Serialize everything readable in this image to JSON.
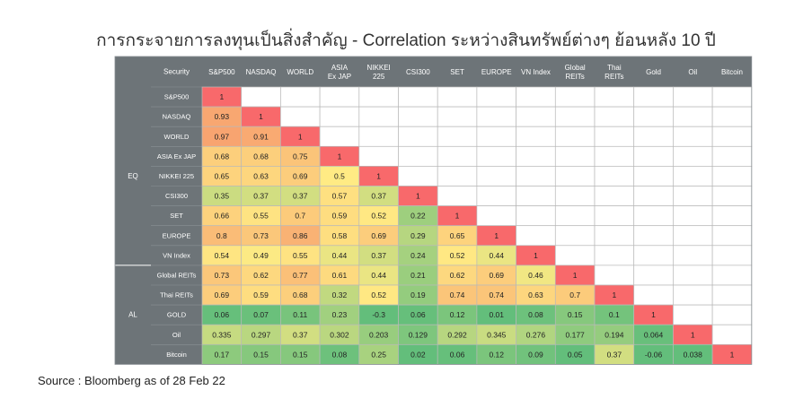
{
  "title": "การกระจายการลงทุนเป็นสิ่งสำคัญ - Correlation ระหว่างสินทรัพย์ต่างๆ ย้อนหลัง 10 ปี",
  "source": "Source : Bloomberg as of 28 Feb 22",
  "chart_data": {
    "type": "heatmap",
    "corner_label": "",
    "row_header_label": "Security",
    "columns": [
      "S&P500",
      "NASDAQ",
      "WORLD",
      "ASIA\nEx JAP",
      "NIKKEI\n225",
      "CSI300",
      "SET",
      "EUROPE",
      "VN Index",
      "Global\nREITs",
      "Thai\nREITs",
      "Gold",
      "Oil",
      "Bitcoin"
    ],
    "rows": [
      "S&P500",
      "NASDAQ",
      "WORLD",
      "ASIA Ex JAP",
      "NIKKEI 225",
      "CSI300",
      "SET",
      "EUROPE",
      "VN Index",
      "Global REITs",
      "Thai REITs",
      "GOLD",
      "Oil",
      "Bitcoin"
    ],
    "groups": [
      {
        "label": "EQ",
        "start": 0,
        "end": 8
      },
      {
        "label": "AL",
        "start": 9,
        "end": 13
      }
    ],
    "values": [
      [
        "1"
      ],
      [
        "0.93",
        "1"
      ],
      [
        "0.97",
        "0.91",
        "1"
      ],
      [
        "0.68",
        "0.68",
        "0.75",
        "1"
      ],
      [
        "0.65",
        "0.63",
        "0.69",
        "0.5",
        "1"
      ],
      [
        "0.35",
        "0.37",
        "0.37",
        "0.57",
        "0.37",
        "1"
      ],
      [
        "0.66",
        "0.55",
        "0.7",
        "0.59",
        "0.52",
        "0.22",
        "1"
      ],
      [
        "0.8",
        "0.73",
        "0.86",
        "0.58",
        "0.69",
        "0.29",
        "0.65",
        "1"
      ],
      [
        "0.54",
        "0.49",
        "0.55",
        "0.44",
        "0.37",
        "0.24",
        "0.52",
        "0.44",
        "1"
      ],
      [
        "0.73",
        "0.62",
        "0.77",
        "0.61",
        "0.44",
        "0.21",
        "0.62",
        "0.69",
        "0.46",
        "1"
      ],
      [
        "0.69",
        "0.59",
        "0.68",
        "0.32",
        "0.52",
        "0.19",
        "0.74",
        "0.74",
        "0.63",
        "0.7",
        "1"
      ],
      [
        "0.06",
        "0.07",
        "0.11",
        "0.23",
        "-0.3",
        "0.06",
        "0.12",
        "0.01",
        "0.08",
        "0.15",
        "0.1",
        "1"
      ],
      [
        "0.335",
        "0.297",
        "0.37",
        "0.302",
        "0.203",
        "0.129",
        "0.292",
        "0.345",
        "0.276",
        "0.177",
        "0.194",
        "0.064",
        "1"
      ],
      [
        "0.17",
        "0.15",
        "0.15",
        "0.08",
        "0.25",
        "0.02",
        "0.06",
        "0.12",
        "0.09",
        "0.05",
        "0.37",
        "-0.06",
        "0.038",
        "1"
      ]
    ],
    "colors": {
      "header_bg": "#6d7478",
      "header_text": "#ffffff",
      "one": "#f8696b",
      "high": "#f8a470",
      "mid": "#ffeb84",
      "low": "#63be7b",
      "empty": "#ffffff",
      "grid": "#b9b9b9"
    }
  }
}
